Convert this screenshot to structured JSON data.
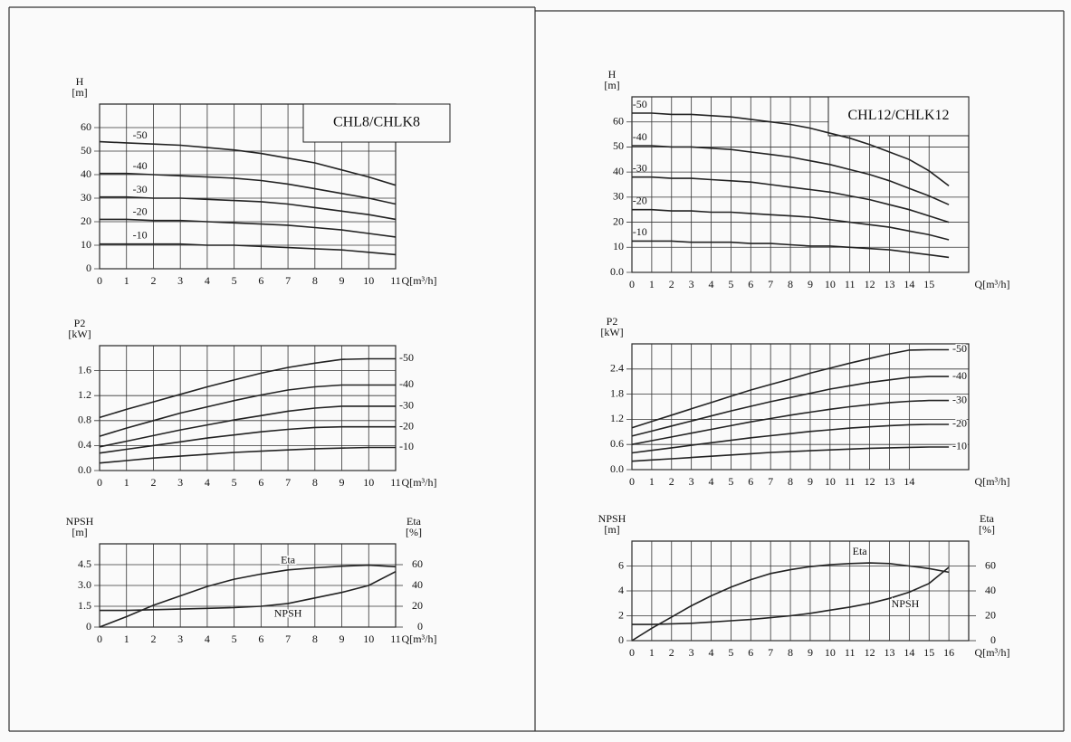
{
  "chart_data": [
    {
      "type": "line",
      "title": "CHL8/CHLK8",
      "ylabel": "H",
      "yunit": "[m]",
      "xlabel": "Q[m³/h]",
      "x": [
        0,
        1,
        2,
        3,
        4,
        5,
        6,
        7,
        8,
        9,
        10,
        11
      ],
      "xlim": [
        0,
        11
      ],
      "xticks": [
        0,
        1,
        2,
        3,
        4,
        5,
        6,
        7,
        8,
        9,
        10,
        11
      ],
      "ylim": [
        0,
        70
      ],
      "yticks": [
        0,
        10,
        20,
        30,
        40,
        50,
        60
      ],
      "grid": true,
      "series": [
        {
          "name": "-50",
          "color": "#222222",
          "values": [
            54,
            53.5,
            53,
            52.5,
            51.5,
            50.5,
            49,
            47,
            45,
            42,
            39,
            35.5
          ]
        },
        {
          "name": "-40",
          "color": "#222222",
          "values": [
            40.5,
            40.5,
            40,
            39.5,
            39,
            38.5,
            37.5,
            36,
            34,
            32,
            30,
            27.5
          ]
        },
        {
          "name": "-30",
          "color": "#222222",
          "values": [
            30.5,
            30.5,
            30,
            30,
            29.5,
            29,
            28.5,
            27.5,
            26,
            24.5,
            23,
            21
          ]
        },
        {
          "name": "-20",
          "color": "#222222",
          "values": [
            21,
            21,
            20.5,
            20.5,
            20,
            19.5,
            19,
            18.5,
            17.5,
            16.5,
            15,
            13.5
          ]
        },
        {
          "name": "-10",
          "color": "#222222",
          "values": [
            10.5,
            10.5,
            10.5,
            10.5,
            10,
            10,
            9.5,
            9,
            8.5,
            8,
            7,
            6
          ]
        }
      ]
    },
    {
      "type": "line",
      "ylabel": "P2",
      "yunit": "[kW]",
      "xlabel": "Q[m³/h]",
      "x": [
        0,
        1,
        2,
        3,
        4,
        5,
        6,
        7,
        8,
        9,
        10,
        11
      ],
      "xlim": [
        0,
        11
      ],
      "xticks": [
        0,
        1,
        2,
        3,
        4,
        5,
        6,
        7,
        8,
        9,
        10,
        11
      ],
      "ylim": [
        0,
        2.0
      ],
      "yticks": [
        {
          "value": 0,
          "label": "0.0"
        },
        0.4,
        0.8,
        1.2,
        1.6
      ],
      "grid": true,
      "series": [
        {
          "name": "-50",
          "color": "#222222",
          "values": [
            0.85,
            0.98,
            1.1,
            1.22,
            1.34,
            1.45,
            1.56,
            1.65,
            1.72,
            1.78,
            1.79,
            1.79
          ]
        },
        {
          "name": "-40",
          "color": "#222222",
          "values": [
            0.55,
            0.68,
            0.8,
            0.92,
            1.02,
            1.12,
            1.21,
            1.29,
            1.34,
            1.37,
            1.37,
            1.37
          ]
        },
        {
          "name": "-30",
          "color": "#222222",
          "values": [
            0.38,
            0.47,
            0.56,
            0.65,
            0.73,
            0.81,
            0.88,
            0.95,
            1.0,
            1.03,
            1.03,
            1.03
          ]
        },
        {
          "name": "-20",
          "color": "#222222",
          "values": [
            0.28,
            0.34,
            0.4,
            0.46,
            0.52,
            0.57,
            0.62,
            0.66,
            0.69,
            0.7,
            0.7,
            0.7
          ]
        },
        {
          "name": "-10",
          "color": "#222222",
          "values": [
            0.12,
            0.16,
            0.2,
            0.23,
            0.26,
            0.29,
            0.31,
            0.33,
            0.35,
            0.36,
            0.37,
            0.37
          ]
        }
      ]
    },
    {
      "type": "line",
      "ylabel": "NPSH",
      "yunit": "[m]",
      "y2label": "Eta",
      "y2unit": "[%]",
      "xlabel": "Q[m³/h]",
      "x": [
        0,
        1,
        2,
        3,
        4,
        5,
        6,
        7,
        8,
        9,
        10,
        11
      ],
      "xlim": [
        0,
        11
      ],
      "xticks": [
        0,
        1,
        2,
        3,
        4,
        5,
        6,
        7,
        8,
        9,
        10,
        11
      ],
      "ylim": [
        0,
        6
      ],
      "yticks": [
        0,
        1.5,
        {
          "value": 3,
          "label": "3.0"
        },
        4.5
      ],
      "y2lim": [
        0,
        80
      ],
      "y2ticks": [
        0,
        20,
        40,
        60
      ],
      "grid": true,
      "series": [
        {
          "name": "Eta",
          "color": "#222222",
          "axis": "y2",
          "values": [
            0,
            10,
            21,
            30,
            39,
            46,
            51,
            55,
            57,
            58.5,
            59.5,
            58
          ]
        },
        {
          "name": "NPSH",
          "color": "#222222",
          "values": [
            1.2,
            1.2,
            1.25,
            1.3,
            1.35,
            1.4,
            1.5,
            1.7,
            2.1,
            2.5,
            3.0,
            4.0
          ]
        }
      ]
    },
    {
      "type": "line",
      "title": "CHL12/CHLK12",
      "ylabel": "H",
      "yunit": "[m]",
      "xlabel": "Q[m³/h]",
      "x": [
        0,
        1,
        2,
        3,
        4,
        5,
        6,
        7,
        8,
        9,
        10,
        11,
        12,
        13,
        14,
        15,
        16
      ],
      "xlim": [
        0,
        17
      ],
      "xticks": [
        0,
        1,
        2,
        3,
        4,
        5,
        6,
        7,
        8,
        9,
        10,
        11,
        12,
        13,
        14,
        15
      ],
      "ylim": [
        0,
        70
      ],
      "yticks": [
        {
          "value": 0,
          "label": "0.0"
        },
        10,
        20,
        30,
        40,
        50,
        60
      ],
      "grid": true,
      "series": [
        {
          "name": "-50",
          "color": "#222222",
          "values": [
            63.5,
            63.5,
            63,
            63,
            62.5,
            62,
            61,
            60,
            59,
            57.5,
            55.5,
            53.5,
            51,
            48,
            45,
            40.5,
            34.5
          ]
        },
        {
          "name": "-40",
          "color": "#222222",
          "values": [
            50.5,
            50.5,
            50,
            50,
            49.5,
            49,
            48,
            47,
            46,
            44.5,
            43,
            41,
            39,
            36.5,
            33.5,
            30.5,
            27
          ]
        },
        {
          "name": "-30",
          "color": "#222222",
          "values": [
            38,
            38,
            37.5,
            37.5,
            37,
            36.5,
            36,
            35,
            34,
            33,
            32,
            30.5,
            29,
            27,
            25,
            22.5,
            20
          ]
        },
        {
          "name": "-20",
          "color": "#222222",
          "values": [
            25,
            25,
            24.5,
            24.5,
            24,
            24,
            23.5,
            23,
            22.5,
            22,
            21,
            20,
            19,
            18,
            16.5,
            15,
            13
          ]
        },
        {
          "name": "-10",
          "color": "#222222",
          "values": [
            12.5,
            12.5,
            12.5,
            12,
            12,
            12,
            11.5,
            11.5,
            11,
            10.5,
            10.5,
            10,
            9.5,
            9,
            8,
            7,
            6
          ]
        }
      ]
    },
    {
      "type": "line",
      "ylabel": "P2",
      "yunit": "[kW]",
      "xlabel": "Q[m³/h]",
      "x": [
        0,
        1,
        2,
        3,
        4,
        5,
        6,
        7,
        8,
        9,
        10,
        11,
        12,
        13,
        14,
        15,
        16
      ],
      "xlim": [
        0,
        17
      ],
      "xticks": [
        0,
        1,
        2,
        3,
        4,
        5,
        6,
        7,
        8,
        9,
        10,
        11,
        12,
        13,
        14
      ],
      "ylim": [
        0,
        3.0
      ],
      "yticks": [
        {
          "value": 0,
          "label": "0.0"
        },
        0.6,
        1.2,
        1.8,
        2.4
      ],
      "grid": true,
      "series": [
        {
          "name": "-50",
          "color": "#222222",
          "values": [
            1.0,
            1.15,
            1.3,
            1.45,
            1.6,
            1.75,
            1.9,
            2.03,
            2.16,
            2.3,
            2.42,
            2.54,
            2.65,
            2.76,
            2.85,
            2.86,
            2.86
          ]
        },
        {
          "name": "-40",
          "color": "#222222",
          "values": [
            0.8,
            0.92,
            1.04,
            1.16,
            1.28,
            1.4,
            1.51,
            1.62,
            1.72,
            1.82,
            1.92,
            2.0,
            2.08,
            2.14,
            2.2,
            2.22,
            2.22
          ]
        },
        {
          "name": "-30",
          "color": "#222222",
          "values": [
            0.6,
            0.69,
            0.78,
            0.87,
            0.96,
            1.05,
            1.14,
            1.22,
            1.3,
            1.37,
            1.44,
            1.5,
            1.55,
            1.6,
            1.63,
            1.65,
            1.65
          ]
        },
        {
          "name": "-20",
          "color": "#222222",
          "values": [
            0.4,
            0.46,
            0.52,
            0.58,
            0.64,
            0.7,
            0.76,
            0.81,
            0.86,
            0.91,
            0.95,
            0.99,
            1.02,
            1.05,
            1.07,
            1.08,
            1.08
          ]
        },
        {
          "name": "-10",
          "color": "#222222",
          "values": [
            0.2,
            0.23,
            0.26,
            0.29,
            0.32,
            0.35,
            0.38,
            0.41,
            0.43,
            0.45,
            0.47,
            0.49,
            0.51,
            0.52,
            0.53,
            0.54,
            0.54
          ]
        }
      ]
    },
    {
      "type": "line",
      "ylabel": "NPSH",
      "yunit": "[m]",
      "y2label": "Eta",
      "y2unit": "[%]",
      "xlabel": "Q[m³/h]",
      "x": [
        0,
        1,
        2,
        3,
        4,
        5,
        6,
        7,
        8,
        9,
        10,
        11,
        12,
        13,
        14,
        15,
        16
      ],
      "xlim": [
        0,
        17
      ],
      "xticks": [
        0,
        1,
        2,
        3,
        4,
        5,
        6,
        7,
        8,
        9,
        10,
        11,
        12,
        13,
        14,
        15,
        16
      ],
      "ylim": [
        0,
        8
      ],
      "yticks": [
        0,
        2,
        4,
        6
      ],
      "y2lim": [
        0,
        80
      ],
      "y2ticks": [
        0,
        20,
        40,
        60
      ],
      "grid": true,
      "series": [
        {
          "name": "Eta",
          "color": "#222222",
          "axis": "y2",
          "values": [
            0,
            10,
            19,
            28,
            36,
            43,
            49,
            54,
            57,
            59.5,
            61,
            62,
            62.5,
            62,
            60,
            58,
            55
          ]
        },
        {
          "name": "NPSH",
          "color": "#222222",
          "values": [
            1.3,
            1.3,
            1.35,
            1.4,
            1.5,
            1.6,
            1.7,
            1.85,
            2.0,
            2.2,
            2.45,
            2.7,
            3.0,
            3.4,
            3.9,
            4.6,
            5.9
          ]
        }
      ]
    }
  ]
}
